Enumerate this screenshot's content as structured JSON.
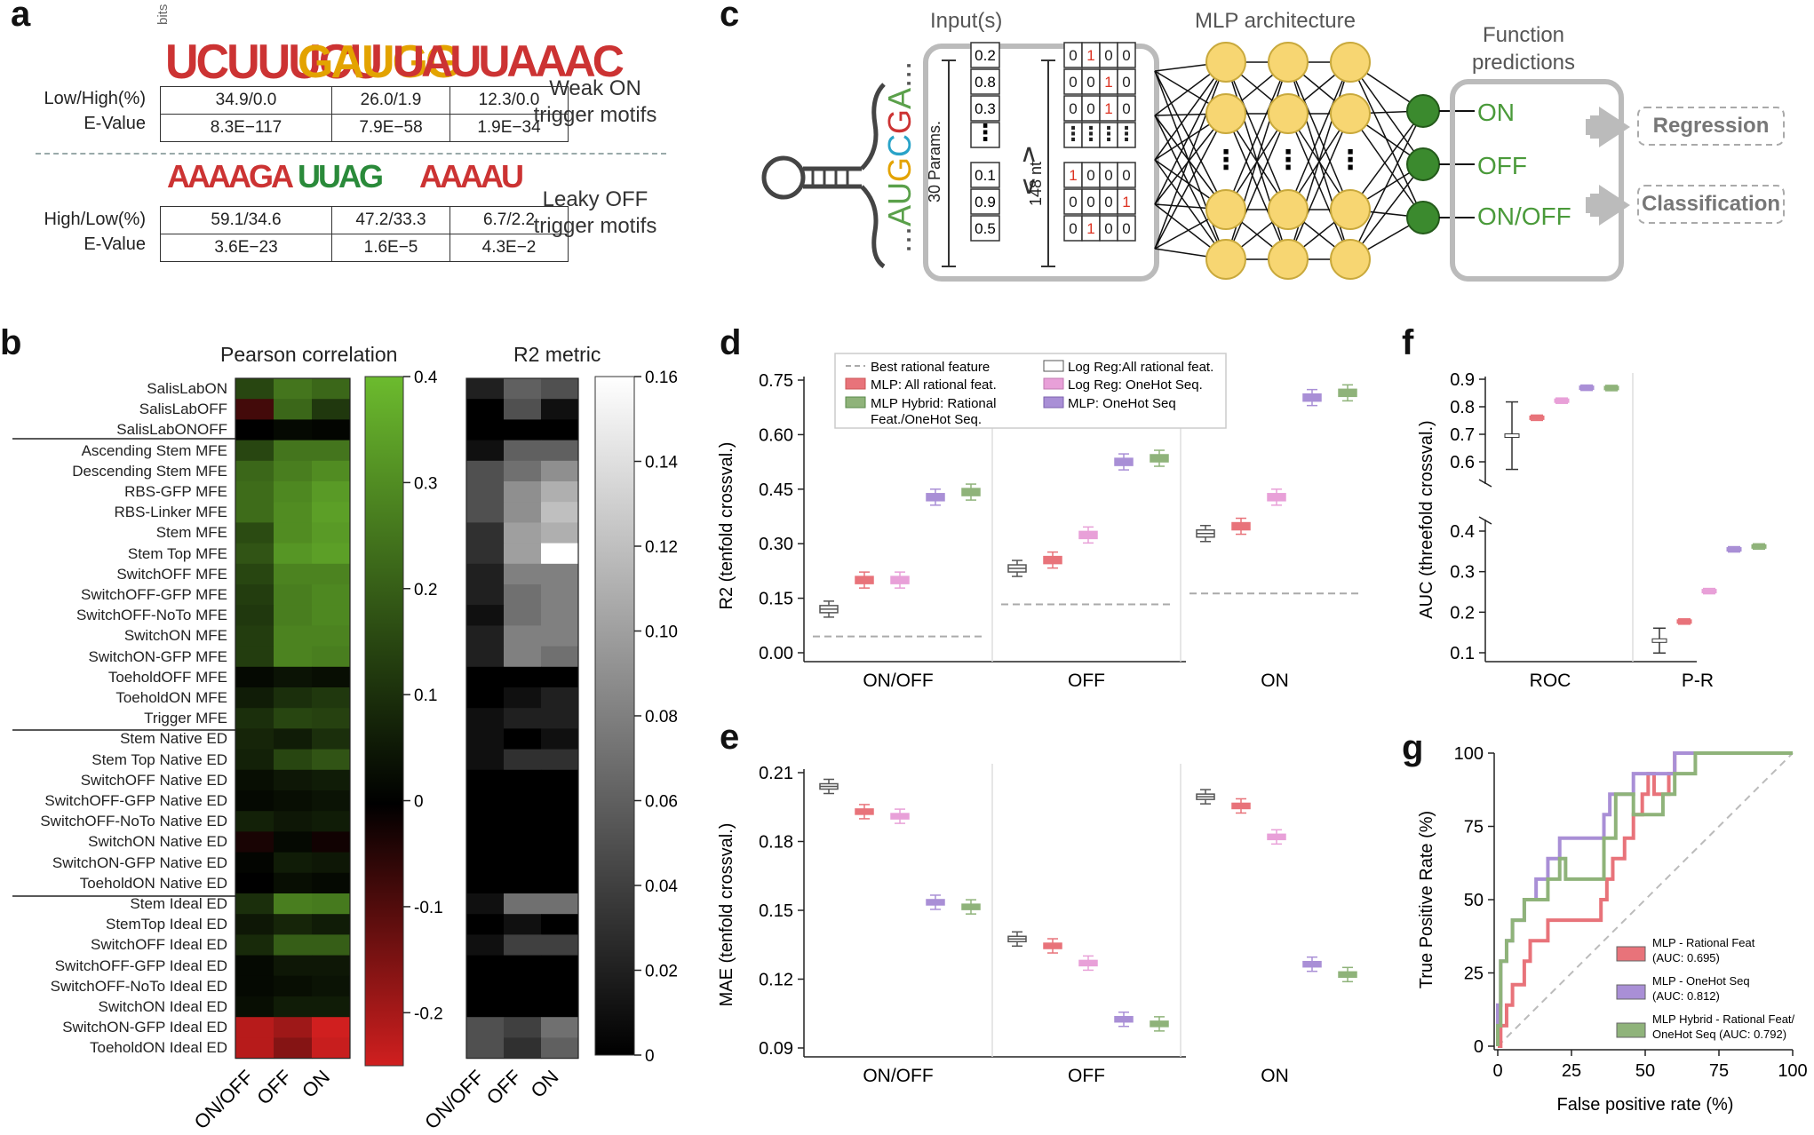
{
  "panels": {
    "a": "a",
    "b": "b",
    "c": "c",
    "d": "d",
    "e": "e",
    "f": "f",
    "g": "g"
  },
  "panel_a": {
    "logo_axis": "bits",
    "weak_on": {
      "motifs": [
        "UCUUUCU",
        "GAUGG",
        "UAUUAAAC"
      ],
      "row_labels": [
        "Low/High(%)",
        "E-Value"
      ],
      "values": [
        [
          "34.9/0.0",
          "26.0/1.9",
          "12.3/0.0"
        ],
        [
          "8.3E−117",
          "7.9E−58",
          "1.9E−34"
        ]
      ],
      "label": [
        "Weak ON",
        "trigger motifs"
      ]
    },
    "leaky_off": {
      "motifs": [
        "AAAAGA",
        "UUAG",
        "AAAAU"
      ],
      "row_labels": [
        "High/Low(%)",
        "E-Value"
      ],
      "values": [
        [
          "59.1/34.6",
          "47.2/33.3",
          "6.7/2.2"
        ],
        [
          "3.6E−23",
          "1.6E−5",
          "4.3E−2"
        ]
      ],
      "label": [
        "Leaky OFF",
        "trigger motifs"
      ]
    }
  },
  "panel_b": {
    "pearson_title": "Pearson correlation",
    "r2_title": "R2 metric",
    "columns": [
      "ON/OFF",
      "OFF",
      "ON"
    ],
    "rows": [
      "SalisLabON",
      "SalisLabOFF",
      "SalisLabONOFF",
      "Ascending Stem MFE",
      "Descending Stem MFE",
      "RBS-GFP MFE",
      "RBS-Linker MFE",
      "Stem MFE",
      "Stem Top MFE",
      "SwitchOFF MFE",
      "SwitchOFF-GFP MFE",
      "SwitchOFF-NoTo MFE",
      "SwitchON MFE",
      "SwitchON-GFP MFE",
      "ToeholdOFF MFE",
      "ToeholdON MFE",
      "Trigger MFE",
      "Stem Native ED",
      "Stem Top Native ED",
      "SwitchOFF Native ED",
      "SwitchOFF-GFP Native ED",
      "SwitchOFF-NoTo Native ED",
      "SwitchON Native ED",
      "SwitchON-GFP Native ED",
      "ToeholdON Native ED",
      "Stem Ideal ED",
      "StemTop Ideal ED",
      "SwitchOFF Ideal ED",
      "SwitchOFF-GFP Ideal ED",
      "SwitchOFF-NoTo Ideal ED",
      "SwitchON Ideal ED",
      "SwitchON-GFP Ideal ED",
      "ToeholdON Ideal ED"
    ],
    "pearson": [
      [
        0.15,
        0.25,
        0.22
      ],
      [
        -0.08,
        0.22,
        0.12
      ],
      [
        0.0,
        0.02,
        0.01
      ],
      [
        0.15,
        0.25,
        0.25
      ],
      [
        0.22,
        0.27,
        0.3
      ],
      [
        0.23,
        0.29,
        0.33
      ],
      [
        0.23,
        0.3,
        0.34
      ],
      [
        0.16,
        0.3,
        0.33
      ],
      [
        0.18,
        0.32,
        0.34
      ],
      [
        0.15,
        0.28,
        0.28
      ],
      [
        0.13,
        0.27,
        0.29
      ],
      [
        0.12,
        0.27,
        0.29
      ],
      [
        0.13,
        0.28,
        0.28
      ],
      [
        0.13,
        0.28,
        0.27
      ],
      [
        0.02,
        0.04,
        0.03
      ],
      [
        0.06,
        0.1,
        0.12
      ],
      [
        0.1,
        0.15,
        0.14
      ],
      [
        0.08,
        0.06,
        0.1
      ],
      [
        0.07,
        0.15,
        0.18
      ],
      [
        0.03,
        0.05,
        0.06
      ],
      [
        0.02,
        0.03,
        0.04
      ],
      [
        0.07,
        0.05,
        0.06
      ],
      [
        -0.03,
        0.02,
        -0.02
      ],
      [
        0.01,
        0.06,
        0.05
      ],
      [
        0.0,
        0.03,
        0.02
      ],
      [
        0.1,
        0.27,
        0.26
      ],
      [
        0.05,
        0.08,
        0.06
      ],
      [
        0.09,
        0.2,
        0.2
      ],
      [
        0.02,
        0.05,
        0.05
      ],
      [
        0.02,
        0.03,
        0.04
      ],
      [
        0.03,
        0.06,
        0.06
      ],
      [
        -0.22,
        -0.19,
        -0.26
      ],
      [
        -0.22,
        -0.16,
        -0.24
      ]
    ],
    "r2": [
      [
        0.02,
        0.06,
        0.05
      ],
      [
        0.0,
        0.05,
        0.01
      ],
      [
        0.0,
        0.0,
        0.0
      ],
      [
        0.01,
        0.06,
        0.06
      ],
      [
        0.05,
        0.07,
        0.09
      ],
      [
        0.05,
        0.09,
        0.11
      ],
      [
        0.05,
        0.09,
        0.12
      ],
      [
        0.03,
        0.1,
        0.11
      ],
      [
        0.03,
        0.1,
        0.16
      ],
      [
        0.02,
        0.08,
        0.08
      ],
      [
        0.02,
        0.07,
        0.08
      ],
      [
        0.01,
        0.07,
        0.08
      ],
      [
        0.02,
        0.08,
        0.08
      ],
      [
        0.02,
        0.08,
        0.07
      ],
      [
        0.0,
        0.0,
        0.0
      ],
      [
        0.0,
        0.01,
        0.02
      ],
      [
        0.01,
        0.02,
        0.02
      ],
      [
        0.01,
        0.0,
        0.01
      ],
      [
        0.01,
        0.03,
        0.03
      ],
      [
        0.0,
        0.0,
        0.0
      ],
      [
        0.0,
        0.0,
        0.0
      ],
      [
        0.0,
        0.0,
        0.0
      ],
      [
        0.0,
        0.0,
        0.0
      ],
      [
        0.0,
        0.0,
        0.0
      ],
      [
        0.0,
        0.0,
        0.0
      ],
      [
        0.01,
        0.07,
        0.07
      ],
      [
        0.0,
        0.01,
        0.0
      ],
      [
        0.01,
        0.04,
        0.04
      ],
      [
        0.0,
        0.0,
        0.0
      ],
      [
        0.0,
        0.0,
        0.0
      ],
      [
        0.0,
        0.0,
        0.0
      ],
      [
        0.05,
        0.04,
        0.07
      ],
      [
        0.05,
        0.03,
        0.06
      ]
    ],
    "pearson_ticks": [
      "0.4",
      "0.3",
      "0.2",
      "0.1",
      "0",
      "-0.1",
      "-0.2"
    ],
    "r2_ticks": [
      "0.16",
      "0.14",
      "0.12",
      "0.10",
      "0.08",
      "0.06",
      "0.04",
      "0.02",
      "0"
    ]
  },
  "panel_c": {
    "input_title": "Input(s)",
    "mlp_title": "MLP architecture",
    "func_title": [
      "Function",
      "predictions"
    ],
    "seq": "...AUGCGA...",
    "params_label": "30 Params.",
    "nt_label": "148 nt",
    "params": [
      "0.2",
      "0.8",
      "0.3",
      "⋮",
      "0.1",
      "0.9",
      "0.5"
    ],
    "onehot": [
      [
        "0",
        "1",
        "0",
        "0"
      ],
      [
        "0",
        "0",
        "1",
        "0"
      ],
      [
        "0",
        "0",
        "1",
        "0"
      ],
      [
        "⋮",
        "⋮",
        "⋮",
        "⋮"
      ],
      [
        "1",
        "0",
        "0",
        "0"
      ],
      [
        "0",
        "0",
        "0",
        "1"
      ],
      [
        "0",
        "1",
        "0",
        "0"
      ]
    ],
    "outputs": [
      "ON",
      "OFF",
      "ON/OFF"
    ],
    "tasks": [
      "Regression",
      "Classification"
    ]
  },
  "panel_d": {
    "ylabel": "R2 (tenfold crossval.)",
    "yticks": [
      "0.75",
      "0.60",
      "0.45",
      "0.30",
      "0.15",
      "0.00"
    ],
    "groups": [
      "ON/OFF",
      "OFF",
      "ON"
    ],
    "legend": [
      "Best rational feature",
      "MLP: All rational feat.",
      "MLP Hybrid: Rational",
      "Feat./OneHot Seq.",
      "Log Reg:All rational feat.",
      "Log Reg: OneHot Seq.",
      "MLP: OneHot Seq"
    ]
  },
  "panel_e": {
    "ylabel": "MAE (tenfold crossval.)",
    "yticks": [
      "0.21",
      "0.18",
      "0.15",
      "0.12",
      "0.09"
    ],
    "groups": [
      "ON/OFF",
      "OFF",
      "ON"
    ]
  },
  "panel_f": {
    "ylabel": "AUC (threefold crossval.)",
    "yticks_top": [
      "0.9",
      "0.8",
      "0.7",
      "0.6"
    ],
    "yticks_bottom": [
      "0.4",
      "0.3",
      "0.2",
      "0.1"
    ],
    "groups": [
      "ROC",
      "P-R"
    ]
  },
  "panel_g": {
    "xlabel": "False positive rate (%)",
    "ylabel": "True Positive Rate (%)",
    "ticks": [
      "0",
      "25",
      "50",
      "75",
      "100"
    ],
    "legend": [
      [
        "MLP - Rational Feat",
        "(AUC: 0.695)"
      ],
      [
        "MLP - OneHot Seq",
        "(AUC: 0.812)"
      ],
      [
        "MLP Hybrid - Rational Feat/",
        "OneHot Seq (AUC: 0.792)"
      ]
    ]
  },
  "chart_data": [
    {
      "type": "box",
      "title": "d",
      "ylabel": "R2 (tenfold crossval.)",
      "ylim": [
        0,
        0.78
      ],
      "categories": [
        "ON/OFF",
        "OFF",
        "ON"
      ],
      "best_rational_feature": [
        0.045,
        0.133,
        0.163
      ],
      "series": [
        {
          "name": "Log Reg:All rational feat.",
          "color": "#ffffff",
          "values": [
            0.12,
            0.232,
            0.328
          ]
        },
        {
          "name": "MLP: All rational feat.",
          "color": "#e8737a",
          "values": [
            0.2,
            0.255,
            0.348
          ]
        },
        {
          "name": "Log Reg: OneHot Seq.",
          "color": "#e8a0d8",
          "values": [
            0.2,
            0.324,
            0.428
          ]
        },
        {
          "name": "MLP: OneHot Seq",
          "color": "#a98fd6",
          "values": [
            0.428,
            0.525,
            0.702
          ]
        },
        {
          "name": "MLP Hybrid: Rational Feat./OneHot Seq.",
          "color": "#8fb37a",
          "values": [
            0.442,
            0.535,
            0.715
          ]
        }
      ]
    },
    {
      "type": "box",
      "title": "e",
      "ylabel": "MAE (tenfold crossval.)",
      "ylim": [
        0.09,
        0.21
      ],
      "categories": [
        "ON/OFF",
        "OFF",
        "ON"
      ],
      "series": [
        {
          "name": "Log Reg:All rational feat.",
          "color": "#ffffff",
          "values": [
            0.204,
            0.1375,
            0.1995
          ]
        },
        {
          "name": "MLP: All rational feat.",
          "color": "#e8737a",
          "values": [
            0.193,
            0.1345,
            0.1955
          ]
        },
        {
          "name": "Log Reg: OneHot Seq.",
          "color": "#e8a0d8",
          "values": [
            0.191,
            0.127,
            0.182
          ]
        },
        {
          "name": "MLP: OneHot Seq",
          "color": "#a98fd6",
          "values": [
            0.1535,
            0.1025,
            0.1265
          ]
        },
        {
          "name": "MLP Hybrid: Rational Feat./OneHot Seq.",
          "color": "#8fb37a",
          "values": [
            0.1515,
            0.1005,
            0.122
          ]
        }
      ]
    },
    {
      "type": "box",
      "title": "f",
      "ylabel": "AUC (threefold crossval.)",
      "categories": [
        "ROC",
        "P-R"
      ],
      "series": [
        {
          "name": "Log Reg:All rational feat.",
          "color": "#ffffff",
          "values": [
            0.695,
            0.13
          ]
        },
        {
          "name": "MLP: All rational feat.",
          "color": "#e8737a",
          "values": [
            0.76,
            0.177
          ]
        },
        {
          "name": "Log Reg: OneHot Seq.",
          "color": "#e8a0d8",
          "values": [
            0.822,
            0.252
          ]
        },
        {
          "name": "MLP: OneHot Seq",
          "color": "#a98fd6",
          "values": [
            0.869,
            0.355
          ]
        },
        {
          "name": "MLP Hybrid: Rational Feat./OneHot Seq.",
          "color": "#8fb37a",
          "values": [
            0.868,
            0.362
          ]
        }
      ]
    },
    {
      "type": "line",
      "title": "g",
      "xlabel": "False positive rate (%)",
      "ylabel": "True Positive Rate (%)",
      "xlim": [
        0,
        100
      ],
      "ylim": [
        0,
        100
      ],
      "series": [
        {
          "name": "MLP - Rational Feat (AUC: 0.695)",
          "color": "#e8737a",
          "x": [
            0,
            1,
            1,
            3,
            3,
            5,
            5,
            9,
            9,
            11,
            11,
            17,
            17,
            35,
            35,
            37,
            37,
            39,
            39,
            43,
            43,
            46,
            46,
            49,
            49,
            51,
            51,
            53,
            53,
            58,
            58,
            60,
            60,
            67,
            67,
            100
          ],
          "y": [
            0,
            0,
            7,
            7,
            14,
            14,
            21,
            21,
            29,
            29,
            36,
            36,
            43,
            43,
            50,
            50,
            57,
            57,
            64,
            64,
            71,
            71,
            79,
            79,
            86,
            86,
            93,
            93,
            86,
            86,
            93,
            93,
            100,
            100,
            100,
            100
          ]
        },
        {
          "name": "MLP - OneHot Seq (AUC: 0.812)",
          "color": "#a98fd6",
          "x": [
            0,
            0,
            1,
            1,
            3,
            3,
            5,
            5,
            9,
            9,
            13,
            13,
            17,
            17,
            21,
            21,
            36,
            36,
            38,
            38,
            46,
            46,
            60,
            60,
            100
          ],
          "y": [
            0,
            14,
            14,
            29,
            29,
            36,
            36,
            43,
            43,
            50,
            50,
            57,
            57,
            64,
            64,
            71,
            71,
            79,
            79,
            86,
            86,
            93,
            93,
            100,
            100
          ]
        },
        {
          "name": "MLP Hybrid - Rational Feat/OneHot Seq (AUC: 0.792)",
          "color": "#8fb37a",
          "x": [
            0,
            0,
            1,
            1,
            3,
            3,
            5,
            5,
            9,
            9,
            17,
            17,
            21,
            21,
            23,
            23,
            36,
            36,
            40,
            40,
            46,
            46,
            56,
            56,
            60,
            60,
            67,
            67,
            100
          ],
          "y": [
            0,
            7,
            7,
            29,
            29,
            36,
            36,
            43,
            43,
            50,
            50,
            57,
            57,
            64,
            64,
            57,
            57,
            71,
            71,
            86,
            86,
            79,
            79,
            86,
            86,
            93,
            93,
            100,
            100
          ]
        }
      ]
    }
  ]
}
